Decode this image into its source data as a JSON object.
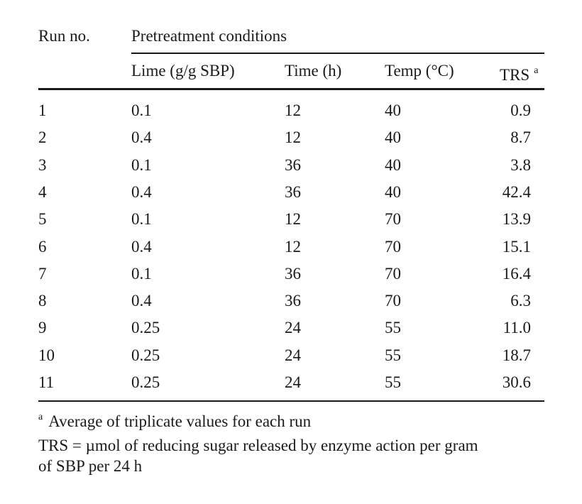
{
  "header": {
    "run_no": "Run no.",
    "group": "Pretreatment conditions",
    "col_lime": "Lime (g/g SBP)",
    "col_time": "Time (h)",
    "col_temp": "Temp (°C)",
    "col_trs": "TRS",
    "col_trs_marker": "a"
  },
  "rows": [
    {
      "run": "1",
      "lime": "0.1",
      "time": "12",
      "temp": "40",
      "trs": "0.9"
    },
    {
      "run": "2",
      "lime": "0.4",
      "time": "12",
      "temp": "40",
      "trs": "8.7"
    },
    {
      "run": "3",
      "lime": "0.1",
      "time": "36",
      "temp": "40",
      "trs": "3.8"
    },
    {
      "run": "4",
      "lime": "0.4",
      "time": "36",
      "temp": "40",
      "trs": "42.4"
    },
    {
      "run": "5",
      "lime": "0.1",
      "time": "12",
      "temp": "70",
      "trs": "13.9"
    },
    {
      "run": "6",
      "lime": "0.4",
      "time": "12",
      "temp": "70",
      "trs": "15.1"
    },
    {
      "run": "7",
      "lime": "0.1",
      "time": "36",
      "temp": "70",
      "trs": "16.4"
    },
    {
      "run": "8",
      "lime": "0.4",
      "time": "36",
      "temp": "70",
      "trs": "6.3"
    },
    {
      "run": "9",
      "lime": "0.25",
      "time": "24",
      "temp": "55",
      "trs": "11.0"
    },
    {
      "run": "10",
      "lime": "0.25",
      "time": "24",
      "temp": "55",
      "trs": "18.7"
    },
    {
      "run": "11",
      "lime": "0.25",
      "time": "24",
      "temp": "55",
      "trs": "30.6"
    }
  ],
  "footnotes": {
    "marker": "a",
    "note_a": "Average of triplicate values for each run",
    "trs_line1": "TRS = µmol of reducing sugar released by enzyme action per gram",
    "trs_line2": "of SBP per 24 h"
  }
}
